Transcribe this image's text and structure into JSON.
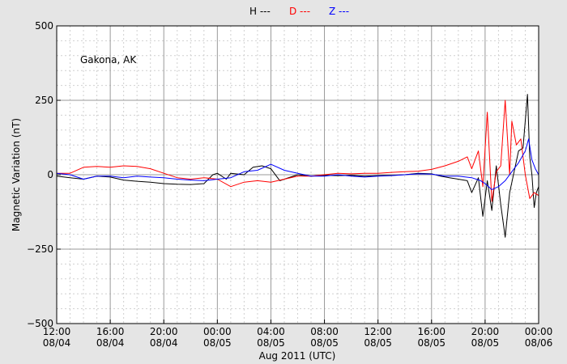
{
  "chart_data": {
    "type": "line",
    "xlabel": "Aug 2011 (UTC)",
    "ylabel": "Magnetic Variation (nT)",
    "annotation": "Gakona, AK",
    "x_unit": "UTC",
    "xlim": [
      "2011-08-04 12:00",
      "2011-08-06 00:00"
    ],
    "ylim": [
      -500,
      500
    ],
    "grid": true,
    "legend_placement": "top-center",
    "y_ticks": [
      {
        "value": 500,
        "label": "500"
      },
      {
        "value": 250,
        "label": "250"
      },
      {
        "value": 0,
        "label": "0"
      },
      {
        "value": -250,
        "label": "−250"
      },
      {
        "value": -500,
        "label": "−500"
      }
    ],
    "x_ticks": [
      {
        "time": "2011-08-04 12:00",
        "line1": "12:00",
        "line2": "08/04"
      },
      {
        "time": "2011-08-04 16:00",
        "line1": "16:00",
        "line2": "08/04"
      },
      {
        "time": "2011-08-04 20:00",
        "line1": "20:00",
        "line2": "08/04"
      },
      {
        "time": "2011-08-05 00:00",
        "line1": "00:00",
        "line2": "08/05"
      },
      {
        "time": "2011-08-05 04:00",
        "line1": "04:00",
        "line2": "08/05"
      },
      {
        "time": "2011-08-05 08:00",
        "line1": "08:00",
        "line2": "08/05"
      },
      {
        "time": "2011-08-05 12:00",
        "line1": "12:00",
        "line2": "08/05"
      },
      {
        "time": "2011-08-05 16:00",
        "line1": "16:00",
        "line2": "08/05"
      },
      {
        "time": "2011-08-05 20:00",
        "line1": "20:00",
        "line2": "08/05"
      },
      {
        "time": "2011-08-06 00:00",
        "line1": "00:00",
        "line2": "08/06"
      }
    ],
    "series": [
      {
        "name": "H ---",
        "color": "#000000",
        "points": [
          [
            "2011-08-04 12:00",
            -5
          ],
          [
            "2011-08-04 13:00",
            -10
          ],
          [
            "2011-08-04 14:00",
            -15
          ],
          [
            "2011-08-04 15:00",
            -5
          ],
          [
            "2011-08-04 16:00",
            -8
          ],
          [
            "2011-08-04 17:00",
            -18
          ],
          [
            "2011-08-04 18:00",
            -22
          ],
          [
            "2011-08-04 19:00",
            -25
          ],
          [
            "2011-08-04 20:00",
            -30
          ],
          [
            "2011-08-04 21:00",
            -32
          ],
          [
            "2011-08-04 22:00",
            -33
          ],
          [
            "2011-08-04 23:00",
            -30
          ],
          [
            "2011-08-04 23:40",
            0
          ],
          [
            "2011-08-05 00:00",
            5
          ],
          [
            "2011-08-05 00:40",
            -15
          ],
          [
            "2011-08-05 01:00",
            5
          ],
          [
            "2011-08-05 02:00",
            0
          ],
          [
            "2011-08-05 02:40",
            25
          ],
          [
            "2011-08-05 03:20",
            30
          ],
          [
            "2011-08-05 04:00",
            20
          ],
          [
            "2011-08-05 04:40",
            -20
          ],
          [
            "2011-08-05 05:00",
            -15
          ],
          [
            "2011-08-05 06:00",
            0
          ],
          [
            "2011-08-05 07:00",
            -5
          ],
          [
            "2011-08-05 08:00",
            -2
          ],
          [
            "2011-08-05 09:00",
            -3
          ],
          [
            "2011-08-05 10:00",
            -2
          ],
          [
            "2011-08-05 11:00",
            -5
          ],
          [
            "2011-08-05 12:00",
            -3
          ],
          [
            "2011-08-05 13:00",
            -2
          ],
          [
            "2011-08-05 14:00",
            0
          ],
          [
            "2011-08-05 15:00",
            5
          ],
          [
            "2011-08-05 16:00",
            3
          ],
          [
            "2011-08-05 16:40",
            -5
          ],
          [
            "2011-08-05 17:20",
            -10
          ],
          [
            "2011-08-05 18:00",
            -15
          ],
          [
            "2011-08-05 18:40",
            -20
          ],
          [
            "2011-08-05 19:00",
            -60
          ],
          [
            "2011-08-05 19:30",
            -10
          ],
          [
            "2011-08-05 19:50",
            -140
          ],
          [
            "2011-08-05 20:10",
            -20
          ],
          [
            "2011-08-05 20:30",
            -120
          ],
          [
            "2011-08-05 20:50",
            30
          ],
          [
            "2011-08-05 21:10",
            -100
          ],
          [
            "2011-08-05 21:30",
            -210
          ],
          [
            "2011-08-05 21:50",
            -60
          ],
          [
            "2011-08-05 22:10",
            10
          ],
          [
            "2011-08-05 22:30",
            80
          ],
          [
            "2011-08-05 22:50",
            90
          ],
          [
            "2011-08-05 23:10",
            270
          ],
          [
            "2011-08-05 23:20",
            60
          ],
          [
            "2011-08-05 23:30",
            0
          ],
          [
            "2011-08-05 23:40",
            -110
          ],
          [
            "2011-08-05 23:50",
            -60
          ],
          [
            "2011-08-06 00:00",
            -40
          ]
        ]
      },
      {
        "name": "D ---",
        "color": "#ff0000",
        "points": [
          [
            "2011-08-04 12:00",
            5
          ],
          [
            "2011-08-04 13:00",
            5
          ],
          [
            "2011-08-04 14:00",
            25
          ],
          [
            "2011-08-04 15:00",
            28
          ],
          [
            "2011-08-04 16:00",
            25
          ],
          [
            "2011-08-04 17:00",
            30
          ],
          [
            "2011-08-04 18:00",
            28
          ],
          [
            "2011-08-04 19:00",
            20
          ],
          [
            "2011-08-04 20:00",
            5
          ],
          [
            "2011-08-04 21:00",
            -10
          ],
          [
            "2011-08-04 22:00",
            -15
          ],
          [
            "2011-08-04 23:00",
            -10
          ],
          [
            "2011-08-05 00:00",
            -15
          ],
          [
            "2011-08-05 01:00",
            -40
          ],
          [
            "2011-08-05 02:00",
            -25
          ],
          [
            "2011-08-05 03:00",
            -20
          ],
          [
            "2011-08-05 04:00",
            -25
          ],
          [
            "2011-08-05 05:00",
            -15
          ],
          [
            "2011-08-05 06:00",
            -5
          ],
          [
            "2011-08-05 07:00",
            -5
          ],
          [
            "2011-08-05 08:00",
            0
          ],
          [
            "2011-08-05 09:00",
            5
          ],
          [
            "2011-08-05 10:00",
            3
          ],
          [
            "2011-08-05 11:00",
            5
          ],
          [
            "2011-08-05 12:00",
            5
          ],
          [
            "2011-08-05 13:00",
            8
          ],
          [
            "2011-08-05 14:00",
            10
          ],
          [
            "2011-08-05 15:00",
            12
          ],
          [
            "2011-08-05 16:00",
            18
          ],
          [
            "2011-08-05 17:00",
            30
          ],
          [
            "2011-08-05 18:00",
            45
          ],
          [
            "2011-08-05 18:40",
            60
          ],
          [
            "2011-08-05 19:00",
            20
          ],
          [
            "2011-08-05 19:30",
            80
          ],
          [
            "2011-08-05 19:50",
            -40
          ],
          [
            "2011-08-05 20:10",
            210
          ],
          [
            "2011-08-05 20:30",
            -90
          ],
          [
            "2011-08-05 20:50",
            10
          ],
          [
            "2011-08-05 21:10",
            30
          ],
          [
            "2011-08-05 21:30",
            250
          ],
          [
            "2011-08-05 21:50",
            0
          ],
          [
            "2011-08-05 22:00",
            180
          ],
          [
            "2011-08-05 22:20",
            100
          ],
          [
            "2011-08-05 22:40",
            120
          ],
          [
            "2011-08-05 23:00",
            0
          ],
          [
            "2011-08-05 23:20",
            -80
          ],
          [
            "2011-08-05 23:40",
            -60
          ],
          [
            "2011-08-06 00:00",
            -70
          ]
        ]
      },
      {
        "name": "Z ---",
        "color": "#0000ff",
        "points": [
          [
            "2011-08-04 12:00",
            5
          ],
          [
            "2011-08-04 13:00",
            0
          ],
          [
            "2011-08-04 14:00",
            -15
          ],
          [
            "2011-08-04 15:00",
            -5
          ],
          [
            "2011-08-04 16:00",
            -5
          ],
          [
            "2011-08-04 17:00",
            -10
          ],
          [
            "2011-08-04 18:00",
            -5
          ],
          [
            "2011-08-04 19:00",
            -8
          ],
          [
            "2011-08-04 20:00",
            -10
          ],
          [
            "2011-08-04 21:00",
            -15
          ],
          [
            "2011-08-04 22:00",
            -18
          ],
          [
            "2011-08-04 23:00",
            -20
          ],
          [
            "2011-08-05 00:00",
            -15
          ],
          [
            "2011-08-05 01:00",
            -10
          ],
          [
            "2011-08-05 02:00",
            10
          ],
          [
            "2011-08-05 03:00",
            15
          ],
          [
            "2011-08-05 04:00",
            35
          ],
          [
            "2011-08-05 05:00",
            15
          ],
          [
            "2011-08-05 06:00",
            5
          ],
          [
            "2011-08-05 07:00",
            -5
          ],
          [
            "2011-08-05 08:00",
            -5
          ],
          [
            "2011-08-05 09:00",
            0
          ],
          [
            "2011-08-05 10:00",
            -5
          ],
          [
            "2011-08-05 11:00",
            -8
          ],
          [
            "2011-08-05 12:00",
            -5
          ],
          [
            "2011-08-05 13:00",
            -3
          ],
          [
            "2011-08-05 14:00",
            0
          ],
          [
            "2011-08-05 15:00",
            3
          ],
          [
            "2011-08-05 16:00",
            2
          ],
          [
            "2011-08-05 17:00",
            -5
          ],
          [
            "2011-08-05 18:00",
            -5
          ],
          [
            "2011-08-05 19:00",
            -10
          ],
          [
            "2011-08-05 19:40",
            -20
          ],
          [
            "2011-08-05 20:00",
            -30
          ],
          [
            "2011-08-05 20:30",
            -50
          ],
          [
            "2011-08-05 21:00",
            -40
          ],
          [
            "2011-08-05 21:30",
            -20
          ],
          [
            "2011-08-05 22:00",
            10
          ],
          [
            "2011-08-05 22:30",
            40
          ],
          [
            "2011-08-05 23:00",
            80
          ],
          [
            "2011-08-05 23:15",
            120
          ],
          [
            "2011-08-05 23:30",
            50
          ],
          [
            "2011-08-05 23:45",
            20
          ],
          [
            "2011-08-06 00:00",
            0
          ]
        ]
      }
    ]
  }
}
